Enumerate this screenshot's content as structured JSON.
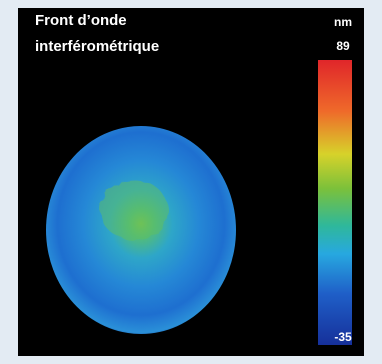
{
  "header": {
    "title_lines": [
      "Front d’onde",
      "interférométrique"
    ]
  },
  "colorbar": {
    "unit": "nm",
    "max": 89,
    "min": -35
  }
}
